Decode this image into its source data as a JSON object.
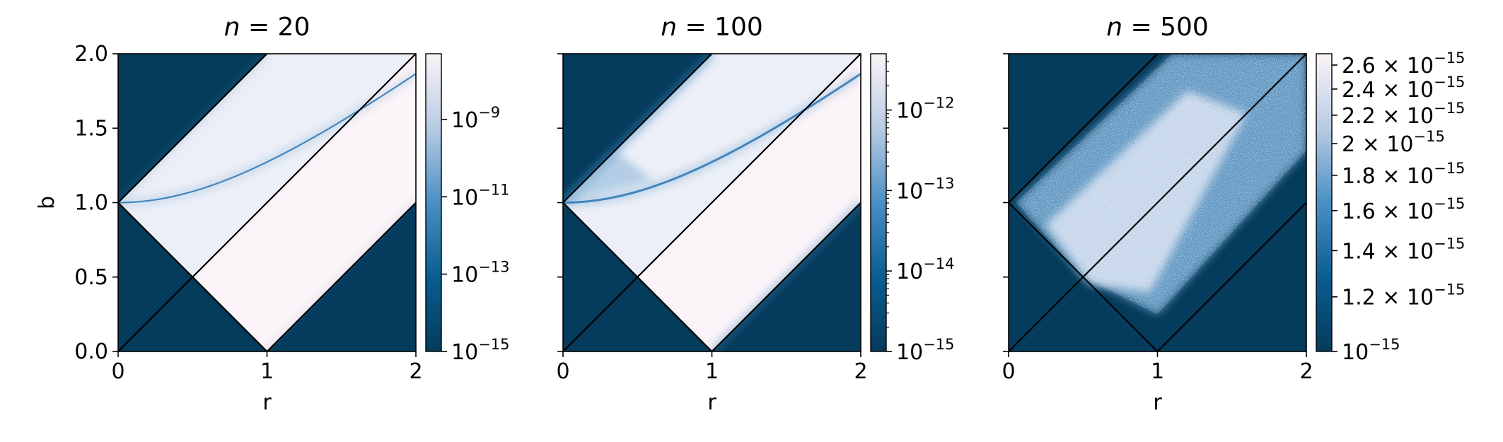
{
  "chart_data": [
    {
      "type": "heatmap",
      "title": "n = 20",
      "title_var": "n",
      "title_rest": " = 20",
      "xlabel": "r",
      "ylabel": "b",
      "xlim": [
        0,
        2
      ],
      "ylim": [
        0,
        2
      ],
      "xticks": [
        "0",
        "1",
        "2"
      ],
      "yticks": [
        "0.0",
        "0.5",
        "1.0",
        "1.5",
        "2.0"
      ],
      "colorbar": {
        "scale": "log",
        "range": [
          1e-15,
          5e-08
        ],
        "major_ticks": [
          {
            "value": 1e-15,
            "mantissa": "10",
            "exp": "−15"
          },
          {
            "value": 1e-13,
            "mantissa": "10",
            "exp": "−13"
          },
          {
            "value": 1e-11,
            "mantissa": "10",
            "exp": "−11"
          },
          {
            "value": 1e-09,
            "mantissa": "10",
            "exp": "−9"
          }
        ],
        "minor_ticks": false
      },
      "lines": [
        {
          "from": [
            0,
            1
          ],
          "to": [
            1,
            2
          ]
        },
        {
          "from": [
            0,
            1
          ],
          "to": [
            1,
            0
          ]
        },
        {
          "from": [
            0,
            0
          ],
          "to": [
            2,
            2
          ]
        },
        {
          "from": [
            1,
            0
          ],
          "to": [
            2,
            1
          ]
        }
      ],
      "curve_strength": 0.55
    },
    {
      "type": "heatmap",
      "title": "n = 100",
      "title_var": "n",
      "title_rest": " = 100",
      "xlabel": "r",
      "ylabel": "",
      "xlim": [
        0,
        2
      ],
      "ylim": [
        0,
        2
      ],
      "xticks": [
        "0",
        "1",
        "2"
      ],
      "yticks": [],
      "colorbar": {
        "scale": "log",
        "range": [
          1e-15,
          5e-12
        ],
        "major_ticks": [
          {
            "value": 1e-15,
            "mantissa": "10",
            "exp": "−15"
          },
          {
            "value": 1e-14,
            "mantissa": "10",
            "exp": "−14"
          },
          {
            "value": 1e-13,
            "mantissa": "10",
            "exp": "−13"
          },
          {
            "value": 1e-12,
            "mantissa": "10",
            "exp": "−12"
          }
        ],
        "minor_ticks": true
      },
      "lines": [
        {
          "from": [
            0,
            1
          ],
          "to": [
            1,
            2
          ]
        },
        {
          "from": [
            0,
            1
          ],
          "to": [
            1,
            0
          ]
        },
        {
          "from": [
            0,
            0
          ],
          "to": [
            2,
            2
          ]
        },
        {
          "from": [
            1,
            0
          ],
          "to": [
            2,
            1
          ]
        }
      ],
      "curve_strength": 1.0
    },
    {
      "type": "heatmap",
      "title": "n = 500",
      "title_var": "n",
      "title_rest": " = 500",
      "xlabel": "r",
      "ylabel": "",
      "xlim": [
        0,
        2
      ],
      "ylim": [
        0,
        2
      ],
      "xticks": [
        "0",
        "1",
        "2"
      ],
      "yticks": [],
      "colorbar": {
        "scale": "log",
        "range": [
          1e-15,
          2.7e-15
        ],
        "major_ticks": [
          {
            "value": 1e-15,
            "mantissa": "10",
            "exp": "−15"
          },
          {
            "value": 1.2e-15,
            "mantissa": "1.2 × 10",
            "exp": "−15"
          },
          {
            "value": 1.4e-15,
            "mantissa": "1.4 × 10",
            "exp": "−15"
          },
          {
            "value": 1.6e-15,
            "mantissa": "1.6 × 10",
            "exp": "−15"
          },
          {
            "value": 1.8e-15,
            "mantissa": "1.8 × 10",
            "exp": "−15"
          },
          {
            "value": 2e-15,
            "mantissa": "2 × 10",
            "exp": "−15"
          },
          {
            "value": 2.2e-15,
            "mantissa": "2.2 × 10",
            "exp": "−15"
          },
          {
            "value": 2.4e-15,
            "mantissa": "2.4 × 10",
            "exp": "−15"
          },
          {
            "value": 2.6e-15,
            "mantissa": "2.6 × 10",
            "exp": "−15"
          }
        ],
        "minor_ticks": false
      },
      "lines": [
        {
          "from": [
            0,
            1
          ],
          "to": [
            1,
            2
          ]
        },
        {
          "from": [
            0,
            1
          ],
          "to": [
            1,
            0
          ]
        },
        {
          "from": [
            0,
            0
          ],
          "to": [
            2,
            2
          ]
        },
        {
          "from": [
            1,
            0
          ],
          "to": [
            2,
            1
          ]
        }
      ],
      "noisy": true
    }
  ],
  "colors": {
    "low": "#053b5b",
    "mid": "#1f6fb0",
    "high": "#fbf4f8",
    "line": "#000000"
  }
}
